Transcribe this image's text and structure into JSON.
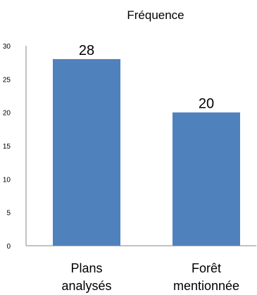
{
  "chart_data": {
    "type": "bar",
    "title": "Fréquence",
    "categories": [
      [
        "Plans",
        "analysés"
      ],
      [
        "Forêt",
        "mentionnée"
      ]
    ],
    "series": [
      {
        "values": [
          28,
          20
        ]
      }
    ],
    "data_labels": [
      "28",
      "20"
    ],
    "ylim": [
      0,
      30
    ],
    "yticks": [
      "0",
      "5",
      "10",
      "15",
      "20",
      "25",
      "30"
    ],
    "grid": false,
    "legend": "none",
    "bar_color": "#4F81BD"
  }
}
